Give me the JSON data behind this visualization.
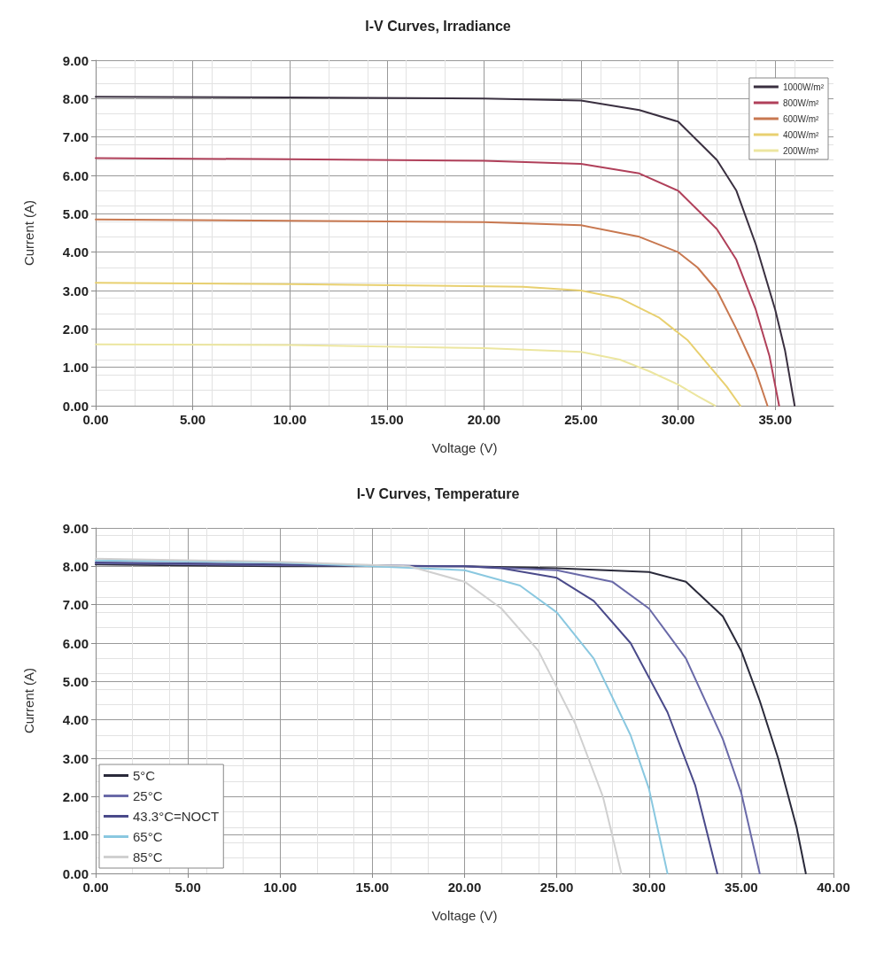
{
  "chart_data": [
    {
      "type": "line",
      "title": "I-V Curves, Irradiance",
      "xlabel": "Voltage (V)",
      "ylabel": "Current (A)",
      "xlim": [
        0,
        38
      ],
      "ylim": [
        0,
        9
      ],
      "xticks": [
        {
          "value": 0,
          "label": "0.00"
        },
        {
          "value": 5,
          "label": "5.00"
        },
        {
          "value": 10,
          "label": "10.00"
        },
        {
          "value": 15,
          "label": "15.00"
        },
        {
          "value": 20,
          "label": "20.00"
        },
        {
          "value": 25,
          "label": "25.00"
        },
        {
          "value": 30,
          "label": "30.00"
        },
        {
          "value": 35,
          "label": "35.00"
        }
      ],
      "yticks": [
        {
          "value": 0,
          "label": "0.00"
        },
        {
          "value": 1,
          "label": "1.00"
        },
        {
          "value": 2,
          "label": "2.00"
        },
        {
          "value": 3,
          "label": "3.00"
        },
        {
          "value": 4,
          "label": "4.00"
        },
        {
          "value": 5,
          "label": "5.00"
        },
        {
          "value": 6,
          "label": "6.00"
        },
        {
          "value": 7,
          "label": "7.00"
        },
        {
          "value": 8,
          "label": "8.00"
        },
        {
          "value": 9,
          "label": "9.00"
        }
      ],
      "grid": true,
      "legend": "top right",
      "line_style": "solid",
      "series": [
        {
          "name": "1000W/m²",
          "color": "#3a3040",
          "x": [
            0,
            10,
            20,
            25,
            28,
            30,
            32,
            33,
            34,
            35,
            35.5,
            36
          ],
          "values": [
            8.05,
            8.03,
            8.0,
            7.95,
            7.7,
            7.4,
            6.4,
            5.6,
            4.2,
            2.5,
            1.45,
            0
          ]
        },
        {
          "name": "800W/m²",
          "color": "#b0405a",
          "x": [
            0,
            10,
            20,
            25,
            28,
            30,
            32,
            33,
            34,
            34.7,
            35.2
          ],
          "values": [
            6.45,
            6.42,
            6.38,
            6.3,
            6.05,
            5.6,
            4.6,
            3.8,
            2.5,
            1.3,
            0
          ]
        },
        {
          "name": "600W/m²",
          "color": "#c87850",
          "x": [
            0,
            10,
            20,
            25,
            28,
            30,
            31,
            32,
            33,
            34,
            34.6
          ],
          "values": [
            4.85,
            4.82,
            4.78,
            4.7,
            4.4,
            4.0,
            3.6,
            3.0,
            2.0,
            0.9,
            0
          ]
        },
        {
          "name": "400W/m²",
          "color": "#e8d070",
          "x": [
            0,
            10,
            22,
            25,
            27,
            29,
            30.5,
            31.5,
            32.5,
            33.2
          ],
          "values": [
            3.2,
            3.17,
            3.1,
            3.0,
            2.8,
            2.3,
            1.7,
            1.1,
            0.5,
            0
          ]
        },
        {
          "name": "200W/m²",
          "color": "#ece6a0",
          "x": [
            0,
            10,
            20,
            25,
            27,
            28.5,
            30,
            31,
            31.9
          ],
          "values": [
            1.6,
            1.58,
            1.5,
            1.4,
            1.2,
            0.9,
            0.55,
            0.25,
            0
          ]
        }
      ]
    },
    {
      "type": "line",
      "title": "I-V Curves, Temperature",
      "xlabel": "Voltage (V)",
      "ylabel": "Current (A)",
      "xlim": [
        0,
        40
      ],
      "ylim": [
        0,
        9
      ],
      "xticks": [
        {
          "value": 0,
          "label": "0.00"
        },
        {
          "value": 5,
          "label": "5.00"
        },
        {
          "value": 10,
          "label": "10.00"
        },
        {
          "value": 15,
          "label": "15.00"
        },
        {
          "value": 20,
          "label": "20.00"
        },
        {
          "value": 25,
          "label": "25.00"
        },
        {
          "value": 30,
          "label": "30.00"
        },
        {
          "value": 35,
          "label": "35.00"
        },
        {
          "value": 40,
          "label": "40.00"
        }
      ],
      "yticks": [
        {
          "value": 0,
          "label": "0.00"
        },
        {
          "value": 1,
          "label": "1.00"
        },
        {
          "value": 2,
          "label": "2.00"
        },
        {
          "value": 3,
          "label": "3.00"
        },
        {
          "value": 4,
          "label": "4.00"
        },
        {
          "value": 5,
          "label": "5.00"
        },
        {
          "value": 6,
          "label": "6.00"
        },
        {
          "value": 7,
          "label": "7.00"
        },
        {
          "value": 8,
          "label": "8.00"
        },
        {
          "value": 9,
          "label": "9.00"
        }
      ],
      "grid": true,
      "legend": "bottom left",
      "line_style": "solid",
      "series": [
        {
          "name": "5°C",
          "color": "#2a2a3a",
          "x": [
            0,
            10,
            20,
            25,
            30,
            32,
            34,
            35,
            36,
            37,
            38,
            38.5
          ],
          "values": [
            8.05,
            8.0,
            8.0,
            7.95,
            7.85,
            7.6,
            6.7,
            5.8,
            4.5,
            3.0,
            1.2,
            0
          ]
        },
        {
          "name": "25°C",
          "color": "#6a6aa8",
          "x": [
            0,
            10,
            20,
            25,
            28,
            30,
            32,
            34,
            35,
            36
          ],
          "values": [
            8.08,
            8.03,
            8.0,
            7.9,
            7.6,
            6.9,
            5.6,
            3.5,
            2.1,
            0
          ]
        },
        {
          "name": "43.3°C=NOCT",
          "color": "#4a4a8a",
          "x": [
            0,
            10,
            20,
            22,
            25,
            27,
            29,
            31,
            32.5,
            33.7
          ],
          "values": [
            8.1,
            8.05,
            8.0,
            7.95,
            7.7,
            7.1,
            6.0,
            4.2,
            2.3,
            0
          ]
        },
        {
          "name": "65°C",
          "color": "#8ac8e0",
          "x": [
            0,
            10,
            20,
            23,
            25,
            27,
            29,
            30,
            31
          ],
          "values": [
            8.15,
            8.1,
            7.9,
            7.5,
            6.8,
            5.6,
            3.6,
            2.2,
            0
          ]
        },
        {
          "name": "85°C",
          "color": "#d0d0d0",
          "x": [
            0,
            10,
            17,
            20,
            22,
            24,
            26,
            27.5,
            28.5
          ],
          "values": [
            8.2,
            8.12,
            8.0,
            7.6,
            6.9,
            5.8,
            3.9,
            2.0,
            0
          ]
        }
      ]
    }
  ]
}
